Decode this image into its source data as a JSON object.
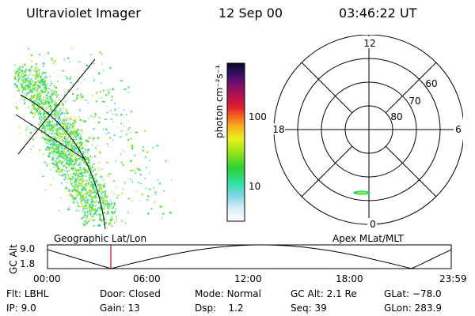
{
  "header": {
    "title": "Ultraviolet Imager",
    "date": "12 Sep 00",
    "time": "03:46:22 UT"
  },
  "colorbar": {
    "unit_label": "photon cm⁻²s⁻¹",
    "tick_100": "100",
    "tick_10": "10"
  },
  "polar": {
    "mlt_labels": {
      "top": "12",
      "left": "18",
      "right": "6",
      "bottom": "0"
    },
    "lat_labels": [
      "60",
      "70",
      "80"
    ]
  },
  "timeline": {
    "left_title": "Geographic Lat/Lon",
    "right_title": "Apex MLat/MLT",
    "yaxis_label": "GC Alt",
    "y_ticks": [
      "9.0",
      "1.8"
    ],
    "x_ticks": [
      "00:00",
      "06:00",
      "12:00",
      "18:00",
      "23:59"
    ],
    "marker_color": "#d40000"
  },
  "status": {
    "row1": [
      {
        "label": "Flt:",
        "value": "LBHL"
      },
      {
        "label": "Door:",
        "value": "Closed"
      },
      {
        "label": "Mode:",
        "value": "Normal"
      },
      {
        "label": "GC Alt:",
        "value": "2.1 Re"
      },
      {
        "label": "GLat:",
        "value": "−78.0"
      }
    ],
    "row2": [
      {
        "label": "IP:",
        "value": "9.0"
      },
      {
        "label": "Gain:",
        "value": "13"
      },
      {
        "label": "Dsp:",
        "value": "1.2"
      },
      {
        "label": "Seq:",
        "value": "39"
      },
      {
        "label": "GLon:",
        "value": "283.9"
      }
    ]
  },
  "colors": {
    "accent": "#d40000"
  }
}
